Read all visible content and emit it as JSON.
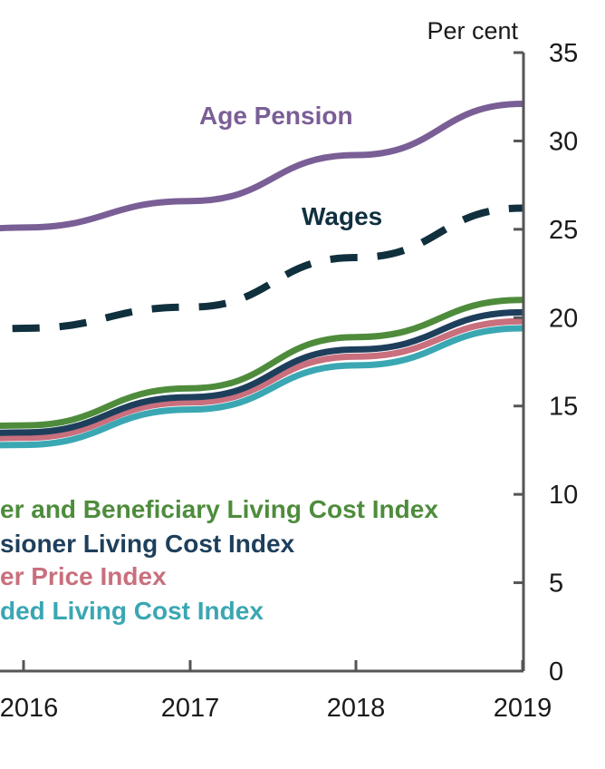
{
  "chart_data": {
    "type": "line",
    "title": "",
    "xlabel": "",
    "ylabel": "Per cent",
    "xlim": [
      2015.1,
      2019
    ],
    "ylim": [
      0,
      35
    ],
    "x_ticks": [
      "2016",
      "2017",
      "2018",
      "2019"
    ],
    "y_ticks": [
      "0",
      "5",
      "10",
      "15",
      "20",
      "25",
      "30",
      "35"
    ],
    "y_axis_side": "right",
    "grid": false,
    "series": [
      {
        "name": "Age Pension",
        "color": "#7a5e96",
        "style": "solid",
        "label": "Age Pension",
        "points": [
          [
            2015.1,
            24.1
          ],
          [
            2016,
            25.1
          ],
          [
            2017,
            26.6
          ],
          [
            2018,
            29.2
          ],
          [
            2019,
            32.1
          ]
        ]
      },
      {
        "name": "Wages",
        "color": "#10303e",
        "style": "dashed",
        "label": "Wages",
        "points": [
          [
            2015.1,
            18.1
          ],
          [
            2016,
            19.4
          ],
          [
            2017,
            20.6
          ],
          [
            2018,
            23.4
          ],
          [
            2019,
            26.2
          ]
        ]
      },
      {
        "name": "Pensioner and Beneficiary Living Cost Index",
        "color": "#4e8c3c",
        "style": "solid",
        "label": "er and Beneficiary Living Cost Index",
        "points": [
          [
            2015.1,
            13.4
          ],
          [
            2016,
            13.9
          ],
          [
            2017,
            16.0
          ],
          [
            2018,
            18.9
          ],
          [
            2019,
            21.0
          ]
        ]
      },
      {
        "name": "Pensioner Living Cost Index",
        "color": "#1e3f5c",
        "style": "solid",
        "label": "sioner Living Cost Index",
        "points": [
          [
            2015.1,
            13.0
          ],
          [
            2016,
            13.5
          ],
          [
            2017,
            15.5
          ],
          [
            2018,
            18.2
          ],
          [
            2019,
            20.3
          ]
        ]
      },
      {
        "name": "Consumer Price Index",
        "color": "#c96f7d",
        "style": "solid",
        "label": "er Price Index",
        "points": [
          [
            2015.1,
            12.8
          ],
          [
            2016,
            13.2
          ],
          [
            2017,
            15.2
          ],
          [
            2018,
            17.8
          ],
          [
            2019,
            19.8
          ]
        ]
      },
      {
        "name": "Selected Living Cost Index",
        "color": "#3aa7b3",
        "style": "solid",
        "label": "ded Living Cost Index",
        "points": [
          [
            2015.1,
            12.4
          ],
          [
            2016,
            12.8
          ],
          [
            2017,
            14.8
          ],
          [
            2018,
            17.3
          ],
          [
            2019,
            19.4
          ]
        ]
      }
    ]
  }
}
